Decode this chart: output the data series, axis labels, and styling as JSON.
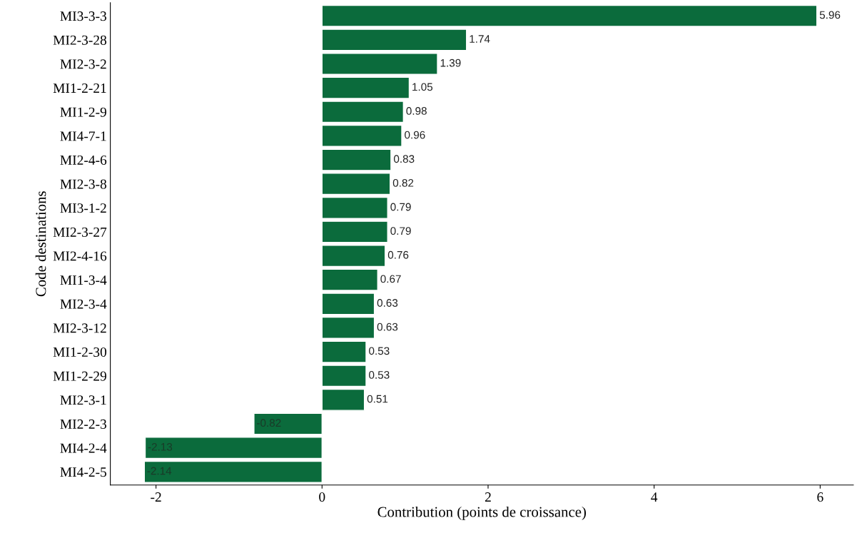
{
  "chart_data": {
    "type": "bar",
    "orientation": "horizontal",
    "xlabel": "Contribution (points de croissance)",
    "ylabel": "Code destinations",
    "categories": [
      "MI3-3-3",
      "MI2-3-28",
      "MI2-3-2",
      "MI1-2-21",
      "MI1-2-9",
      "MI4-7-1",
      "MI2-4-6",
      "MI2-3-8",
      "MI3-1-2",
      "MI2-3-27",
      "MI2-4-16",
      "MI1-3-4",
      "MI2-3-4",
      "MI2-3-12",
      "MI1-2-30",
      "MI1-2-29",
      "MI2-3-1",
      "MI2-2-3",
      "MI4-2-4",
      "MI4-2-5"
    ],
    "values": [
      5.96,
      1.74,
      1.39,
      1.05,
      0.98,
      0.96,
      0.83,
      0.82,
      0.79,
      0.79,
      0.76,
      0.67,
      0.63,
      0.63,
      0.53,
      0.53,
      0.51,
      -0.82,
      -2.13,
      -2.14
    ],
    "color": "#0b6b3c",
    "data_labels": true,
    "xlim": [
      -2.55,
      6.4
    ],
    "xticks": [
      -2,
      0,
      2,
      4,
      6
    ],
    "grid": false,
    "legend": false
  }
}
